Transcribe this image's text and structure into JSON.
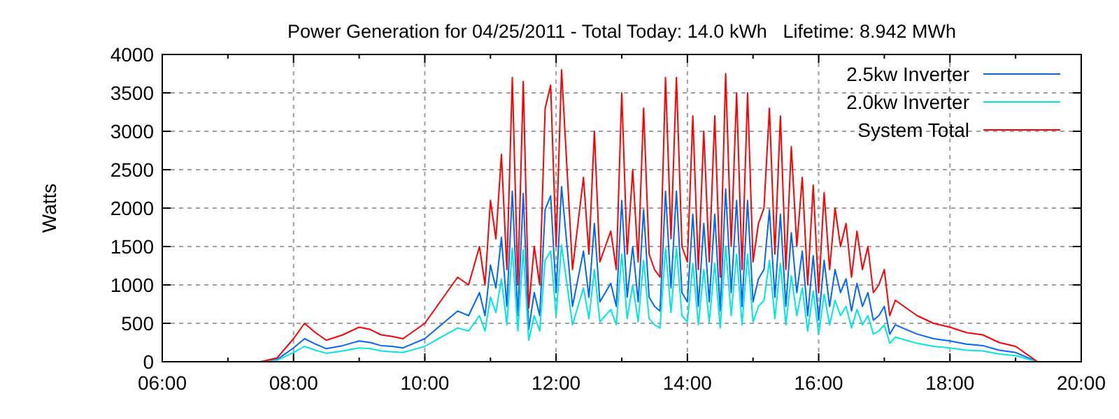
{
  "chart_data": {
    "type": "line",
    "title": "Power Generation for 04/25/2011 - Total Today: 14.0 kWh   Lifetime: 8.942 MWh",
    "ylabel": "Watts",
    "x": [
      7.5,
      7.75,
      8,
      8.167,
      8.333,
      8.5,
      8.75,
      9,
      9.167,
      9.333,
      9.5,
      9.667,
      9.833,
      10,
      10.167,
      10.333,
      10.5,
      10.667,
      10.833,
      10.917,
      11,
      11.083,
      11.167,
      11.25,
      11.333,
      11.417,
      11.5,
      11.583,
      11.667,
      11.75,
      11.833,
      11.917,
      12,
      12.083,
      12.167,
      12.25,
      12.333,
      12.417,
      12.5,
      12.583,
      12.667,
      12.75,
      12.833,
      12.917,
      13,
      13.083,
      13.167,
      13.25,
      13.333,
      13.417,
      13.5,
      13.583,
      13.667,
      13.75,
      13.833,
      13.917,
      14,
      14.083,
      14.167,
      14.25,
      14.333,
      14.417,
      14.5,
      14.583,
      14.667,
      14.75,
      14.833,
      14.917,
      15,
      15.083,
      15.167,
      15.25,
      15.333,
      15.417,
      15.5,
      15.583,
      15.667,
      15.75,
      15.833,
      15.917,
      16,
      16.083,
      16.167,
      16.25,
      16.333,
      16.417,
      16.5,
      16.583,
      16.667,
      16.75,
      16.833,
      16.917,
      17,
      17.083,
      17.167,
      17.333,
      17.5,
      17.75,
      18,
      18.25,
      18.5,
      18.75,
      19,
      19.25,
      19.333
    ],
    "series": [
      {
        "name": "2.5kw Inverter",
        "color": "#0066ff",
        "values": [
          0,
          30,
          180,
          300,
          230,
          170,
          210,
          270,
          250,
          210,
          200,
          180,
          240,
          300,
          420,
          540,
          660,
          600,
          900,
          600,
          1260,
          960,
          1620,
          720,
          2220,
          600,
          2190,
          420,
          900,
          600,
          1980,
          2160,
          900,
          2280,
          1500,
          720,
          1080,
          1440,
          840,
          1800,
          780,
          900,
          1020,
          720,
          2100,
          840,
          1500,
          780,
          1980,
          840,
          720,
          660,
          2220,
          960,
          2220,
          900,
          780,
          1920,
          720,
          1800,
          780,
          1920,
          660,
          2250,
          900,
          2100,
          720,
          2100,
          780,
          1080,
          1200,
          1980,
          840,
          1920,
          720,
          1680,
          900,
          1440,
          600,
          1380,
          540,
          1320,
          720,
          1200,
          900,
          1080,
          660,
          1020,
          720,
          900,
          540,
          600,
          720,
          360,
          480,
          420,
          360,
          300,
          270,
          230,
          210,
          150,
          120,
          30,
          0
        ]
      },
      {
        "name": "2.0kw Inverter",
        "color": "#00e5e5",
        "values": [
          0,
          20,
          120,
          200,
          150,
          110,
          140,
          180,
          170,
          140,
          130,
          120,
          160,
          200,
          280,
          360,
          440,
          400,
          600,
          400,
          840,
          640,
          1080,
          480,
          1480,
          400,
          1460,
          280,
          600,
          400,
          1320,
          1440,
          600,
          1520,
          1000,
          480,
          720,
          960,
          560,
          1200,
          520,
          600,
          680,
          480,
          1400,
          560,
          1000,
          520,
          1320,
          560,
          480,
          440,
          1480,
          640,
          1480,
          600,
          520,
          1280,
          480,
          1200,
          520,
          1280,
          440,
          1500,
          600,
          1400,
          480,
          1400,
          520,
          720,
          800,
          1320,
          560,
          1280,
          480,
          1120,
          600,
          960,
          400,
          920,
          360,
          880,
          480,
          800,
          600,
          720,
          440,
          680,
          480,
          600,
          360,
          400,
          480,
          240,
          320,
          280,
          240,
          200,
          180,
          150,
          140,
          100,
          80,
          20,
          0
        ]
      },
      {
        "name": "System Total",
        "color": "#ff0000",
        "values": [
          0,
          50,
          300,
          500,
          380,
          280,
          350,
          450,
          420,
          350,
          330,
          300,
          400,
          500,
          700,
          900,
          1100,
          1000,
          1500,
          1000,
          2100,
          1600,
          2700,
          1200,
          3700,
          1000,
          3650,
          700,
          1500,
          1000,
          3300,
          3600,
          1500,
          3800,
          2500,
          1200,
          1800,
          2400,
          1400,
          3000,
          1300,
          1500,
          1700,
          1200,
          3500,
          1400,
          2500,
          1300,
          3300,
          1400,
          1200,
          1100,
          3700,
          1600,
          3700,
          1500,
          1300,
          3200,
          1200,
          3000,
          1300,
          3200,
          1100,
          3750,
          1500,
          3500,
          1200,
          3500,
          1300,
          1800,
          2000,
          3300,
          1400,
          3200,
          1200,
          2800,
          1500,
          2400,
          1000,
          2300,
          900,
          2200,
          1200,
          2000,
          1500,
          1800,
          1100,
          1700,
          1200,
          1500,
          900,
          1000,
          1200,
          600,
          800,
          700,
          600,
          500,
          450,
          380,
          350,
          250,
          200,
          50,
          0
        ]
      }
    ],
    "xlim": [
      6,
      20
    ],
    "xticks": [
      {
        "value": 6,
        "label": "06:00"
      },
      {
        "value": 7,
        "label": null
      },
      {
        "value": 8,
        "label": "08:00"
      },
      {
        "value": 9,
        "label": null
      },
      {
        "value": 10,
        "label": "10:00"
      },
      {
        "value": 11,
        "label": null
      },
      {
        "value": 12,
        "label": "12:00"
      },
      {
        "value": 13,
        "label": null
      },
      {
        "value": 14,
        "label": "14:00"
      },
      {
        "value": 15,
        "label": null
      },
      {
        "value": 16,
        "label": "16:00"
      },
      {
        "value": 17,
        "label": null
      },
      {
        "value": 18,
        "label": "18:00"
      },
      {
        "value": 19,
        "label": null
      },
      {
        "value": 20,
        "label": "20:00"
      }
    ],
    "ylim": [
      0,
      4000
    ],
    "yticks": [
      0,
      500,
      1000,
      1500,
      2000,
      2500,
      3000,
      3500,
      4000
    ],
    "grid": true,
    "legend": "top right",
    "marker": "none",
    "line_style": "solid"
  }
}
